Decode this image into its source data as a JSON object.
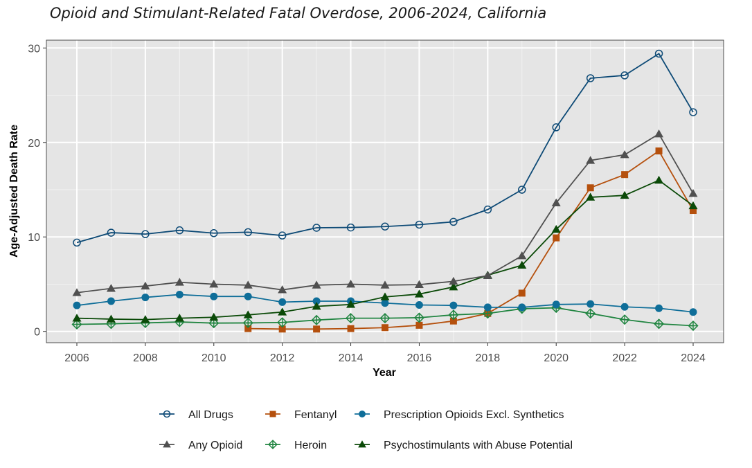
{
  "chart_data": {
    "type": "line",
    "title": "Opioid and Stimulant-Related Fatal Overdose, 2006-2024, California",
    "xlabel": "Year",
    "ylabel": "Age-Adjusted Death Rate",
    "xlim": [
      2005.1,
      2024.9
    ],
    "ylim": [
      -1.2,
      31.5
    ],
    "x_ticks": [
      2006,
      2008,
      2010,
      2012,
      2014,
      2016,
      2018,
      2020,
      2022,
      2024
    ],
    "y_ticks": [
      0,
      10,
      20,
      30
    ],
    "grid": true,
    "legend_position": "bottom",
    "x": [
      2006,
      2007,
      2008,
      2009,
      2010,
      2011,
      2012,
      2013,
      2014,
      2015,
      2016,
      2017,
      2018,
      2019,
      2020,
      2021,
      2022,
      2023,
      2024
    ],
    "series": [
      {
        "name": "All Drugs",
        "color": "#0d4a76",
        "marker": "open-circle",
        "values": [
          9.4,
          10.45,
          10.3,
          10.7,
          10.4,
          10.5,
          10.15,
          10.97,
          11.0,
          11.1,
          11.3,
          11.6,
          12.9,
          15.0,
          21.6,
          26.8,
          27.1,
          29.4,
          23.2
        ]
      },
      {
        "name": "Any Opioid",
        "color": "#505050",
        "marker": "triangle",
        "values": [
          4.1,
          4.55,
          4.8,
          5.2,
          5.0,
          4.9,
          4.4,
          4.9,
          5.0,
          4.9,
          4.95,
          5.3,
          5.9,
          8.0,
          13.6,
          18.1,
          18.7,
          20.9,
          14.6
        ]
      },
      {
        "name": "Fentanyl",
        "color": "#b5500d",
        "marker": "square",
        "values": [
          null,
          null,
          null,
          null,
          null,
          0.3,
          0.25,
          0.25,
          0.3,
          0.4,
          0.65,
          1.1,
          1.9,
          4.05,
          9.9,
          15.2,
          16.6,
          19.1,
          12.8
        ]
      },
      {
        "name": "Heroin",
        "color": "#218541",
        "marker": "open-diamond-plus",
        "values": [
          0.75,
          0.8,
          0.9,
          1.0,
          0.88,
          0.9,
          0.95,
          1.2,
          1.4,
          1.4,
          1.45,
          1.75,
          1.9,
          2.4,
          2.5,
          1.9,
          1.25,
          0.8,
          0.6
        ]
      },
      {
        "name": "Prescription Opioids Excl. Synthetics",
        "color": "#0f6e99",
        "marker": "filled-circle",
        "values": [
          2.75,
          3.2,
          3.6,
          3.9,
          3.7,
          3.7,
          3.1,
          3.2,
          3.2,
          3.0,
          2.8,
          2.75,
          2.55,
          2.55,
          2.85,
          2.9,
          2.6,
          2.45,
          2.05
        ]
      },
      {
        "name": "Psychostimulants with Abuse Potential",
        "color": "#0b4a08",
        "marker": "triangle",
        "values": [
          1.4,
          1.3,
          1.25,
          1.4,
          1.5,
          1.75,
          2.05,
          2.65,
          2.85,
          3.65,
          3.95,
          4.7,
          5.95,
          7.0,
          10.8,
          14.2,
          14.4,
          16.0,
          13.3
        ]
      }
    ],
    "legend_rows": [
      [
        "All Drugs",
        "Fentanyl",
        "Prescription Opioids Excl. Synthetics"
      ],
      [
        "Any Opioid",
        "Heroin",
        "Psychostimulants with Abuse Potential"
      ]
    ]
  }
}
